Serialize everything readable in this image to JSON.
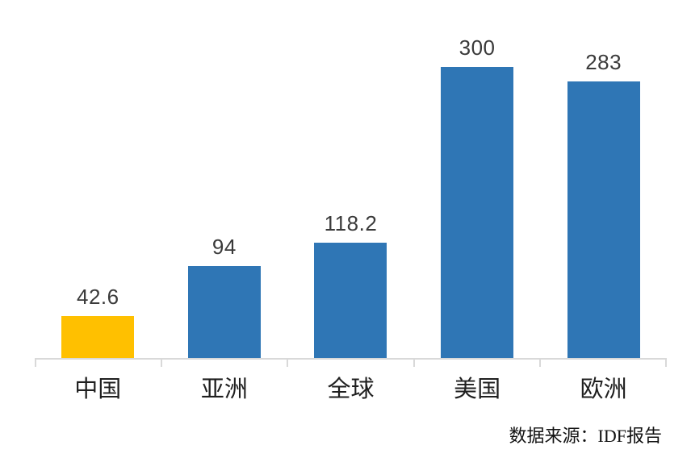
{
  "chart_data": {
    "type": "bar",
    "title": "",
    "xlabel": "",
    "ylabel": "",
    "categories": [
      "中国",
      "亚洲",
      "全球",
      "美国",
      "欧洲"
    ],
    "values": [
      42.6,
      94,
      118.2,
      300,
      283
    ],
    "value_labels": [
      "42.6",
      "94",
      "118.2",
      "300",
      "283"
    ],
    "bar_colors": [
      "#FFC000",
      "#2F76B5",
      "#2F76B5",
      "#2F76B5",
      "#2F76B5"
    ],
    "ylim": [
      0,
      330
    ],
    "grid": false,
    "legend_position": "none",
    "source_note": "数据来源：IDF报告"
  },
  "colors": {
    "highlight_bar": "#FFC000",
    "primary_bar": "#2F76B5",
    "axis_line": "#D9D9D9",
    "value_text": "#3A3A3A",
    "label_text": "#1F1F1F",
    "background": "#FFFFFF"
  }
}
